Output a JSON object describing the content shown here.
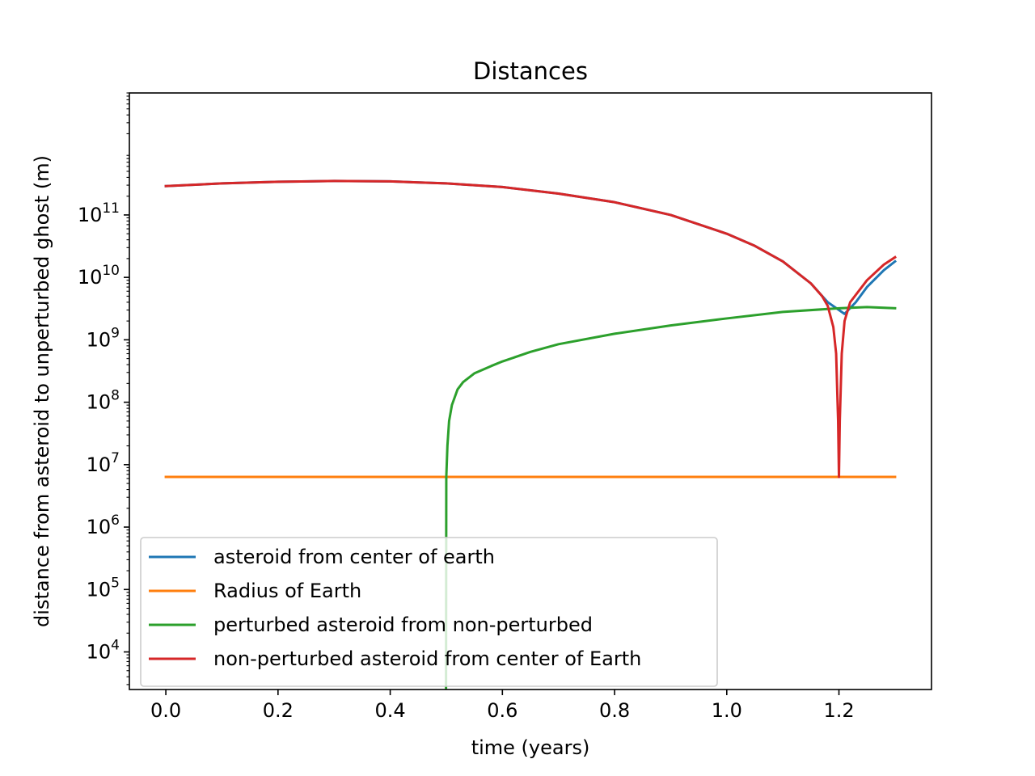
{
  "chart_data": {
    "type": "line",
    "title": "Distances",
    "xlabel": "time (years)",
    "ylabel": "distance from asteroid to unperturbed ghost (m)",
    "yscale": "log",
    "xlim": [
      -0.065,
      1.365
    ],
    "ylim": [
      2500,
      9000000000000
    ],
    "x_ticks": [
      0.0,
      0.2,
      0.4,
      0.6,
      0.8,
      1.0,
      1.2
    ],
    "x_tick_labels": [
      "0.0",
      "0.2",
      "0.4",
      "0.6",
      "0.8",
      "1.0",
      "1.2"
    ],
    "y_ticks": [
      10000,
      100000,
      1000000,
      10000000,
      100000000,
      1000000000,
      10000000000,
      100000000000
    ],
    "y_tick_labels": [
      {
        "base": "10",
        "exp": "4"
      },
      {
        "base": "10",
        "exp": "5"
      },
      {
        "base": "10",
        "exp": "6"
      },
      {
        "base": "10",
        "exp": "7"
      },
      {
        "base": "10",
        "exp": "8"
      },
      {
        "base": "10",
        "exp": "9"
      },
      {
        "base": "10",
        "exp": "10"
      },
      {
        "base": "10",
        "exp": "11"
      }
    ],
    "grid": false,
    "legend_position": "lower-left",
    "series": [
      {
        "name": "asteroid from center of earth",
        "color": "#1f77b4",
        "x": [
          0,
          0.1,
          0.2,
          0.3,
          0.4,
          0.5,
          0.6,
          0.7,
          0.8,
          0.9,
          1.0,
          1.05,
          1.1,
          1.15,
          1.18,
          1.2,
          1.21,
          1.23,
          1.25,
          1.28,
          1.3
        ],
        "y": [
          290000000000.0,
          320000000000.0,
          340000000000.0,
          350000000000.0,
          345000000000.0,
          320000000000.0,
          280000000000.0,
          220000000000.0,
          160000000000.0,
          100000000000.0,
          50000000000.0,
          32000000000.0,
          18000000000.0,
          8000000000.0,
          4000000000.0,
          3000000000.0,
          2600000000.0,
          4000000000.0,
          7000000000.0,
          13000000000.0,
          18000000000.0
        ]
      },
      {
        "name": "Radius of Earth",
        "color": "#ff7f0e",
        "x": [
          0,
          1.3
        ],
        "y": [
          6371000,
          6371000
        ]
      },
      {
        "name": "perturbed asteroid from non-perturbed",
        "color": "#2ca02c",
        "x": [
          0.4995,
          0.4998,
          0.5,
          0.502,
          0.505,
          0.51,
          0.52,
          0.53,
          0.55,
          0.58,
          0.6,
          0.65,
          0.7,
          0.8,
          0.9,
          1.0,
          1.1,
          1.2,
          1.25,
          1.3
        ],
        "y": [
          2500,
          300000,
          6371000,
          20000000,
          50000000,
          90000000,
          160000000,
          210000000,
          290000000,
          380000000,
          450000000,
          640000000,
          850000000,
          1250000000,
          1700000000,
          2200000000,
          2800000000,
          3200000000,
          3350000000,
          3200000000
        ]
      },
      {
        "name": "non-perturbed asteroid from center of Earth",
        "color": "#d62728",
        "x": [
          0,
          0.1,
          0.2,
          0.3,
          0.4,
          0.5,
          0.6,
          0.7,
          0.8,
          0.9,
          1.0,
          1.05,
          1.1,
          1.15,
          1.17,
          1.18,
          1.19,
          1.195,
          1.1985,
          1.2,
          1.2015,
          1.205,
          1.21,
          1.22,
          1.25,
          1.28,
          1.3
        ],
        "y": [
          290000000000.0,
          320000000000.0,
          340000000000.0,
          350000000000.0,
          345000000000.0,
          320000000000.0,
          280000000000.0,
          220000000000.0,
          160000000000.0,
          100000000000.0,
          50000000000.0,
          32000000000.0,
          18000000000.0,
          8000000000.0,
          5000000000.0,
          3500000000.0,
          1600000000.0,
          600000000.0,
          50000000.0,
          6371000,
          50000000.0,
          600000000.0,
          2000000000.0,
          4000000000.0,
          9000000000.0,
          16000000000.0,
          21000000000.0
        ]
      }
    ]
  }
}
